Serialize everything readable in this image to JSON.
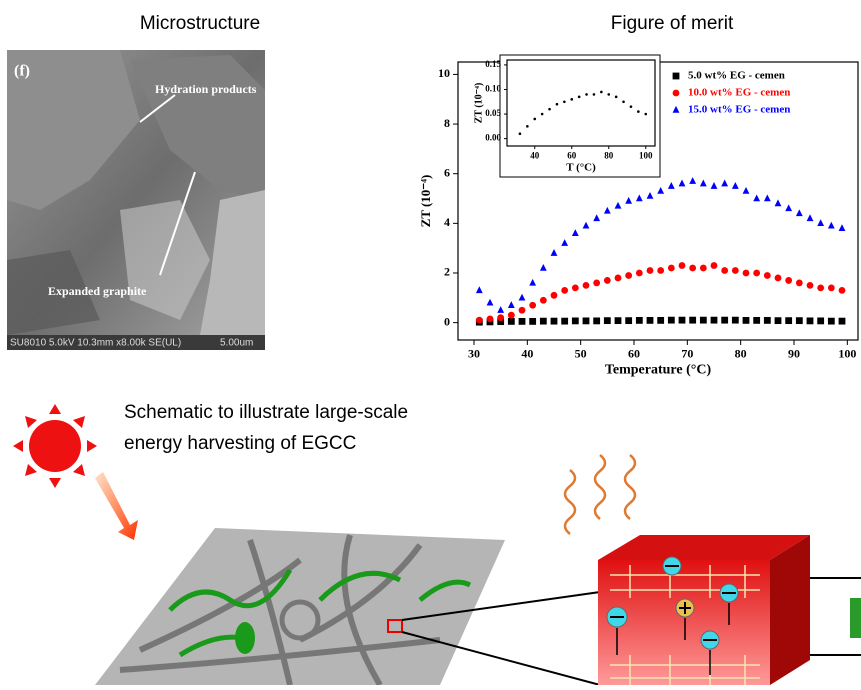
{
  "panels": {
    "left_title": "Microstructure",
    "right_title": "Figure of merit"
  },
  "sem": {
    "panel_label": "(f)",
    "label_1": "Hydration products",
    "label_2": "Expanded graphite",
    "info": "SU8010 5.0kV 10.3mm x8.00k SE(UL)",
    "scale": "5.00um"
  },
  "schematic": {
    "line_1": "Schematic  to  illustrate  large-scale",
    "line_2": "energy harvesting of EGCC"
  },
  "chart_data": [
    {
      "type": "scatter",
      "x_label": "Temperature (°C)",
      "y_label": "ZT (10⁻⁴)",
      "xlim": [
        27,
        102
      ],
      "xticks": [
        30,
        40,
        50,
        60,
        70,
        80,
        90,
        100
      ],
      "ylim": [
        -0.7,
        10.5
      ],
      "yticks": [
        0,
        2,
        4,
        6,
        8,
        10
      ],
      "x": [
        31,
        33,
        35,
        37,
        39,
        41,
        43,
        45,
        47,
        49,
        51,
        53,
        55,
        57,
        59,
        61,
        63,
        65,
        67,
        69,
        71,
        73,
        75,
        77,
        79,
        81,
        83,
        85,
        87,
        89,
        91,
        93,
        95,
        97,
        99
      ],
      "series": [
        {
          "name": "5.0 wt% EG - cemen",
          "color": "#000000",
          "marker": "square",
          "values": [
            0.02,
            0.03,
            0.04,
            0.05,
            0.05,
            0.05,
            0.06,
            0.06,
            0.06,
            0.07,
            0.07,
            0.07,
            0.08,
            0.08,
            0.08,
            0.09,
            0.09,
            0.09,
            0.1,
            0.1,
            0.1,
            0.1,
            0.1,
            0.1,
            0.1,
            0.09,
            0.09,
            0.09,
            0.08,
            0.08,
            0.08,
            0.07,
            0.07,
            0.06,
            0.06
          ]
        },
        {
          "name": "10.0 wt% EG - cemen",
          "color": "#ff0000",
          "marker": "circle",
          "values": [
            0.1,
            0.15,
            0.2,
            0.3,
            0.5,
            0.7,
            0.9,
            1.1,
            1.3,
            1.4,
            1.5,
            1.6,
            1.7,
            1.8,
            1.9,
            2.0,
            2.1,
            2.1,
            2.2,
            2.3,
            2.2,
            2.2,
            2.3,
            2.1,
            2.1,
            2.0,
            2.0,
            1.9,
            1.8,
            1.7,
            1.6,
            1.5,
            1.4,
            1.4,
            1.3
          ]
        },
        {
          "name": "15.0 wt% EG - cemen",
          "color": "#0000ff",
          "marker": "triangle",
          "values": [
            1.3,
            0.8,
            0.5,
            0.7,
            1.0,
            1.6,
            2.2,
            2.8,
            3.2,
            3.6,
            3.9,
            4.2,
            4.5,
            4.7,
            4.9,
            5.0,
            5.1,
            5.3,
            5.5,
            5.6,
            5.7,
            5.6,
            5.5,
            5.6,
            5.5,
            5.3,
            5.0,
            5.0,
            4.8,
            4.6,
            4.4,
            4.2,
            4.0,
            3.9,
            3.8
          ]
        }
      ]
    },
    {
      "type": "scatter",
      "x_label": "T (°C)",
      "y_label": "ZT (10⁻⁴)",
      "xlim": [
        25,
        105
      ],
      "xticks": [
        40,
        60,
        80,
        100
      ],
      "ylim": [
        -0.015,
        0.16
      ],
      "yticks": [
        {
          "value": 0,
          "label": "0.00"
        },
        0.05,
        {
          "value": 0.1,
          "label": "0.10"
        },
        0.15
      ],
      "x": [
        32,
        36,
        40,
        44,
        48,
        52,
        56,
        60,
        64,
        68,
        72,
        76,
        80,
        84,
        88,
        92,
        96,
        100
      ],
      "series": [
        {
          "color": "#000000",
          "marker": "dot",
          "values": [
            0.01,
            0.025,
            0.04,
            0.05,
            0.06,
            0.07,
            0.075,
            0.08,
            0.085,
            0.09,
            0.09,
            0.095,
            0.09,
            0.085,
            0.075,
            0.065,
            0.055,
            0.05
          ]
        }
      ]
    }
  ]
}
